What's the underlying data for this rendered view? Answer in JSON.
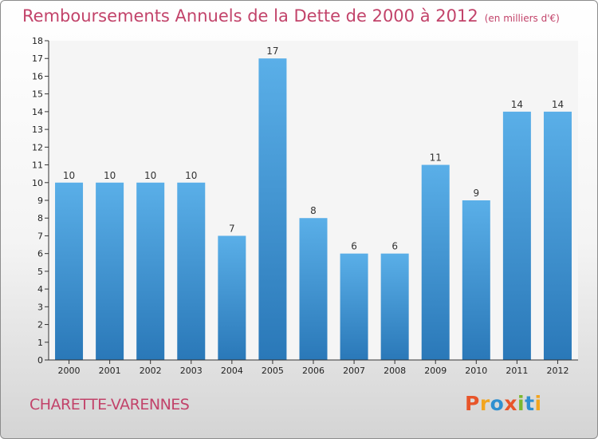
{
  "header": {
    "title": "Remboursements Annuels de la Dette de 2000 à 2012",
    "unit": "(en milliers d'€)"
  },
  "footer": {
    "commune": "CHARETTE-VARENNES",
    "logo": "Proxiti"
  },
  "colors": {
    "title": "#c2436a",
    "bar_top": "#5aafe8",
    "bar_bottom": "#2a78b8",
    "logo_letters": [
      "#e8552a",
      "#f2a51f",
      "#2f8fd0",
      "#e8552a",
      "#7cb82f",
      "#2f8fd0",
      "#f2a51f"
    ]
  },
  "chart_data": {
    "type": "bar",
    "categories": [
      "2000",
      "2001",
      "2002",
      "2003",
      "2004",
      "2005",
      "2006",
      "2007",
      "2008",
      "2009",
      "2010",
      "2011",
      "2012"
    ],
    "values": [
      10,
      10,
      10,
      10,
      7,
      17,
      8,
      6,
      6,
      11,
      9,
      14,
      14
    ],
    "data_labels": [
      "10",
      "10",
      "10",
      "10",
      "7",
      "17",
      "8",
      "6",
      "6",
      "11",
      "9",
      "14",
      "14"
    ],
    "y_ticks": [
      "0",
      "1",
      "2",
      "3",
      "4",
      "5",
      "6",
      "7",
      "8",
      "9",
      "10",
      "11",
      "12",
      "13",
      "14",
      "15",
      "16",
      "17",
      "18"
    ],
    "ylim": [
      0,
      18
    ],
    "grid": false,
    "legend": "none"
  }
}
